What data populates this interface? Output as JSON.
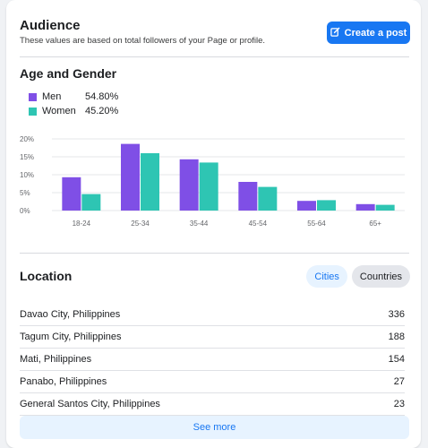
{
  "audience": {
    "title": "Audience",
    "subtitle": "These values are based on total followers of your Page or profile.",
    "create_post_label": "Create a post",
    "create_post_icon": "edit-icon"
  },
  "age_gender": {
    "title": "Age and Gender",
    "legend": [
      {
        "name": "Men",
        "value": "54.80%",
        "color": "#7f4fe6"
      },
      {
        "name": "Women",
        "value": "45.20%",
        "color": "#2ec5b3"
      }
    ]
  },
  "chart_data": {
    "type": "bar",
    "categories": [
      "18-24",
      "25-34",
      "35-44",
      "45-54",
      "55-64",
      "65+"
    ],
    "series": [
      {
        "name": "Men",
        "values": [
          9.3,
          18.6,
          14.3,
          8.0,
          2.7,
          1.8
        ]
      },
      {
        "name": "Women",
        "values": [
          4.6,
          16.0,
          13.4,
          6.6,
          2.9,
          1.6
        ]
      }
    ],
    "y_ticks": [
      "0%",
      "5%",
      "10%",
      "15%",
      "20%"
    ],
    "ylim": [
      0,
      20
    ],
    "grid": true
  },
  "location": {
    "title": "Location",
    "tabs": [
      {
        "label": "Cities",
        "active": true
      },
      {
        "label": "Countries",
        "active": false
      }
    ],
    "rows": [
      {
        "name": "Davao City, Philippines",
        "count": "336"
      },
      {
        "name": "Tagum City, Philippines",
        "count": "188"
      },
      {
        "name": "Mati, Philippines",
        "count": "154"
      },
      {
        "name": "Panabo, Philippines",
        "count": "27"
      },
      {
        "name": "General Santos City, Philippines",
        "count": "23"
      }
    ],
    "see_more_label": "See more"
  }
}
